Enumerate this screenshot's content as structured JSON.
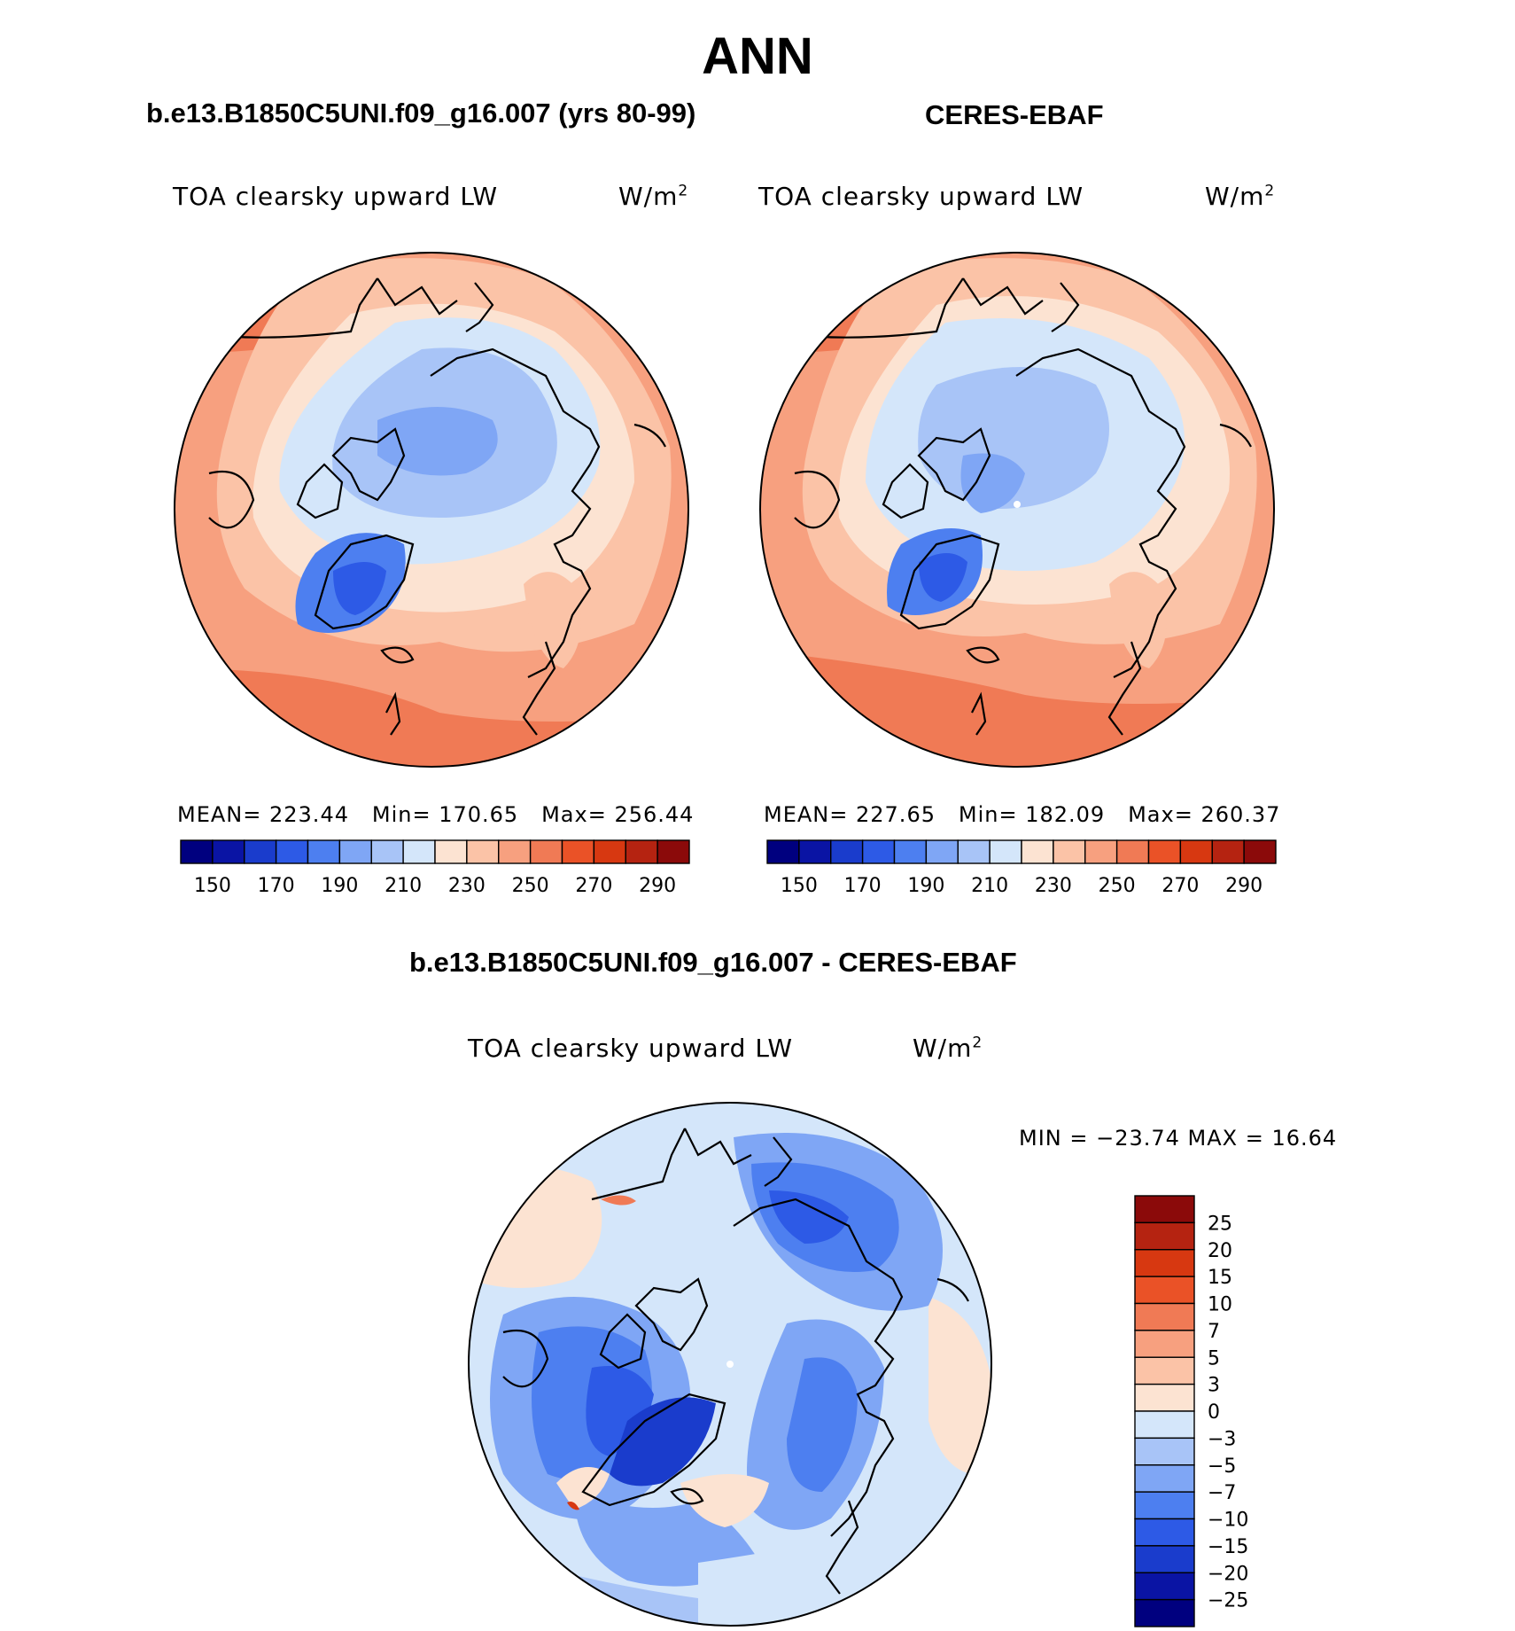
{
  "page_title": "ANN",
  "panels": [
    {
      "case": "b.e13.B1850C5UNI.f09_g16.007 (yrs 80-99)",
      "variable": "TOA clearsky upward LW",
      "units": "W/m",
      "units_sup": "2",
      "stats": {
        "mean_label": "MEAN=",
        "mean": "223.44",
        "min_label": "Min=",
        "min": "170.65",
        "max_label": "Max=",
        "max": "256.44"
      }
    },
    {
      "case": "CERES-EBAF",
      "variable": "TOA clearsky upward LW",
      "units": "W/m",
      "units_sup": "2",
      "stats": {
        "mean_label": "MEAN=",
        "mean": "227.65",
        "min_label": "Min=",
        "min": "182.09",
        "max_label": "Max=",
        "max": "260.37"
      }
    }
  ],
  "diff_panel": {
    "case": "b.e13.B1850C5UNI.f09_g16.007 - CERES-EBAF",
    "variable": "TOA clearsky upward LW",
    "units": "W/m",
    "units_sup": "2",
    "minmax": "MIN = −23.74 MAX =   16.64"
  },
  "colorbars": {
    "abs": {
      "colors": [
        "#00007f",
        "#0a14a4",
        "#1a3ccc",
        "#2d5ae6",
        "#4d7ff0",
        "#7fa6f5",
        "#a8c4f7",
        "#d4e6fa",
        "#fce3d2",
        "#fbc3a7",
        "#f7a07f",
        "#f07a55",
        "#ea5227",
        "#d73811",
        "#b52311",
        "#8b0a0a"
      ],
      "labels": [
        "150",
        "170",
        "190",
        "210",
        "230",
        "250",
        "270",
        "290"
      ]
    },
    "diff": {
      "colors": [
        "#00007f",
        "#0a14a4",
        "#1a3ccc",
        "#2d5ae6",
        "#4d7ff0",
        "#7fa6f5",
        "#a8c4f7",
        "#d4e6fa",
        "#fce3d2",
        "#fbc3a7",
        "#f7a07f",
        "#f07a55",
        "#ea5227",
        "#d73811",
        "#b52311",
        "#8b0a0a"
      ],
      "labels": [
        "−25",
        "−20",
        "−15",
        "−10",
        "−7",
        "−5",
        "−3",
        "0",
        "3",
        "5",
        "7",
        "10",
        "15",
        "20",
        "25"
      ]
    }
  },
  "chart_data": [
    {
      "type": "heatmap",
      "title": "TOA clearsky upward LW",
      "subtitle": "b.e13.B1850C5UNI.f09_g16.007 (yrs 80-99)",
      "units": "W/m2",
      "projection": "north polar stereographic",
      "levels": [
        150,
        160,
        170,
        180,
        190,
        200,
        210,
        220,
        230,
        240,
        250,
        260,
        270,
        280,
        290
      ],
      "mean": 223.44,
      "min": 170.65,
      "max": 256.44
    },
    {
      "type": "heatmap",
      "title": "TOA clearsky upward LW",
      "subtitle": "CERES-EBAF",
      "units": "W/m2",
      "projection": "north polar stereographic",
      "levels": [
        150,
        160,
        170,
        180,
        190,
        200,
        210,
        220,
        230,
        240,
        250,
        260,
        270,
        280,
        290
      ],
      "mean": 227.65,
      "min": 182.09,
      "max": 260.37
    },
    {
      "type": "heatmap",
      "title": "TOA clearsky upward LW",
      "subtitle": "b.e13.B1850C5UNI.f09_g16.007 - CERES-EBAF",
      "units": "W/m2",
      "projection": "north polar stereographic",
      "levels": [
        -25,
        -20,
        -15,
        -10,
        -7,
        -5,
        -3,
        0,
        3,
        5,
        7,
        10,
        15,
        20,
        25
      ],
      "min": -23.74,
      "max": 16.64
    }
  ]
}
